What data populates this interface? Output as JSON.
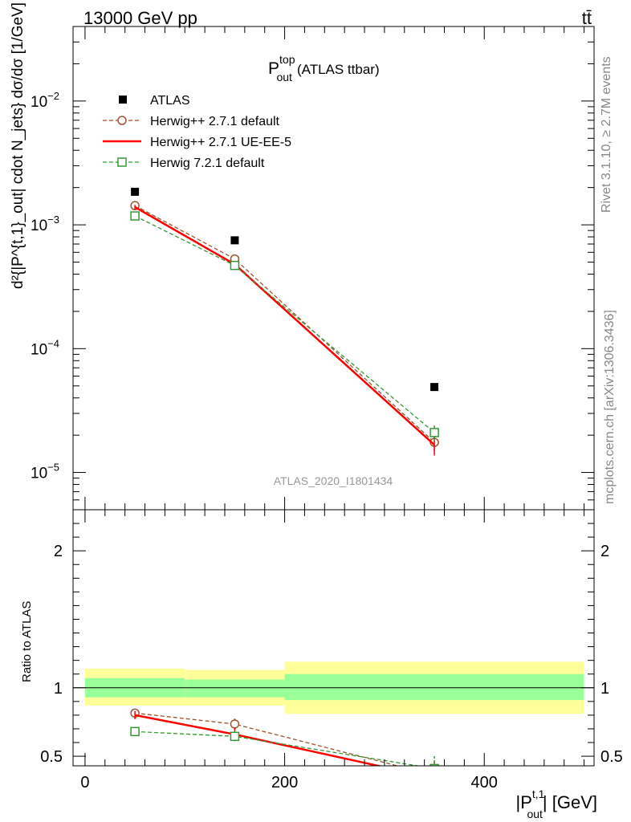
{
  "header": {
    "energy_label": "13000 GeV pp",
    "process_label": "tt̄"
  },
  "side_labels": {
    "rivet": "Rivet 3.1.10, ≥ 2.7M events",
    "mcplots": "mcplots.cern.ch [arXiv:1306.3436]"
  },
  "analysis_id": "ATLAS_2020_I1801434",
  "colors": {
    "data": "#000000",
    "herwigpp_default": "#a0522d",
    "herwigpp_ueee5": "#ff0000",
    "herwig7": "#339933",
    "band_inner": "#99ff99",
    "band_outer": "#ffff99"
  },
  "chart_data": [
    {
      "type": "scatter",
      "title_main": "P",
      "title_sup": "top",
      "title_sub": "out",
      "title_suffix": "(ATLAS ttbar)",
      "ylabel": "d²{|P^{t,1}_out| cdot N_jets} dσ/dσ [1/GeV]",
      "yscale": "log",
      "ylim": [
        5e-06,
        0.04
      ],
      "xlim": [
        -12,
        510
      ],
      "y_tick_labels": [
        {
          "base": "10",
          "exp": "−5",
          "value": 1e-05
        },
        {
          "base": "10",
          "exp": "−4",
          "value": 0.0001
        },
        {
          "base": "10",
          "exp": "−3",
          "value": 0.001
        },
        {
          "base": "10",
          "exp": "−2",
          "value": 0.01
        }
      ],
      "x": [
        50,
        150,
        350
      ],
      "bin_edges": [
        0,
        100,
        200,
        500
      ],
      "series": [
        {
          "key": "atlas",
          "name": "ATLAS",
          "style": "square-filled",
          "values": [
            0.00185,
            0.00075,
            4.9e-05
          ]
        },
        {
          "key": "hpp_def",
          "name": "Herwig++ 2.7.1 default",
          "style": "circle-open-dashed",
          "values": [
            0.00143,
            0.00053,
            1.75e-05
          ],
          "errors": [
            6e-05,
            3e-05,
            2.5e-06
          ]
        },
        {
          "key": "hpp_ue",
          "name": "Herwig++ 2.7.1 UE-EE-5",
          "style": "solid-line",
          "values": [
            0.00139,
            0.00048,
            1.67e-05
          ],
          "errors": [
            6e-05,
            3e-05,
            3e-06
          ]
        },
        {
          "key": "h7",
          "name": "Herwig 7.2.1 default",
          "style": "square-open-dashed",
          "values": [
            0.00118,
            0.00047,
            2.1e-05
          ],
          "errors": [
            5e-05,
            3e-05,
            3e-06
          ]
        }
      ]
    },
    {
      "type": "line",
      "ylabel": "Ratio to ATLAS",
      "xlabel_main": "|P",
      "xlabel_sup": "t,1",
      "xlabel_sub": "out",
      "xlabel_suffix": "| [GeV]",
      "xlim": [
        -12,
        510
      ],
      "ylim": [
        0.43,
        2.3
      ],
      "x_ticks": [
        0,
        200,
        400
      ],
      "y_ticks": [
        0.5,
        1,
        2
      ],
      "x": [
        50,
        150,
        350
      ],
      "bands": [
        {
          "from": 0,
          "to": 100,
          "inner": [
            0.93,
            1.07
          ],
          "outer": [
            0.87,
            1.14
          ]
        },
        {
          "from": 100,
          "to": 200,
          "inner": [
            0.93,
            1.06
          ],
          "outer": [
            0.87,
            1.13
          ]
        },
        {
          "from": 200,
          "to": 500,
          "inner": [
            0.91,
            1.1
          ],
          "outer": [
            0.81,
            1.19
          ]
        }
      ],
      "series": [
        {
          "key": "hpp_def",
          "name": "Herwig++ 2.7.1 default",
          "values": [
            0.815,
            0.735,
            0.36
          ],
          "errors": [
            0.02,
            0.04,
            0.1
          ]
        },
        {
          "key": "hpp_ue",
          "name": "Herwig++ 2.7.1 UE-EE-5",
          "values": [
            0.8,
            0.66,
            0.34
          ],
          "errors": [
            0.03,
            0.05,
            0.1
          ]
        },
        {
          "key": "h7",
          "name": "Herwig 7.2.1 default",
          "values": [
            0.68,
            0.645,
            0.41
          ],
          "errors": [
            0.015,
            0.04,
            0.09
          ]
        }
      ]
    }
  ]
}
